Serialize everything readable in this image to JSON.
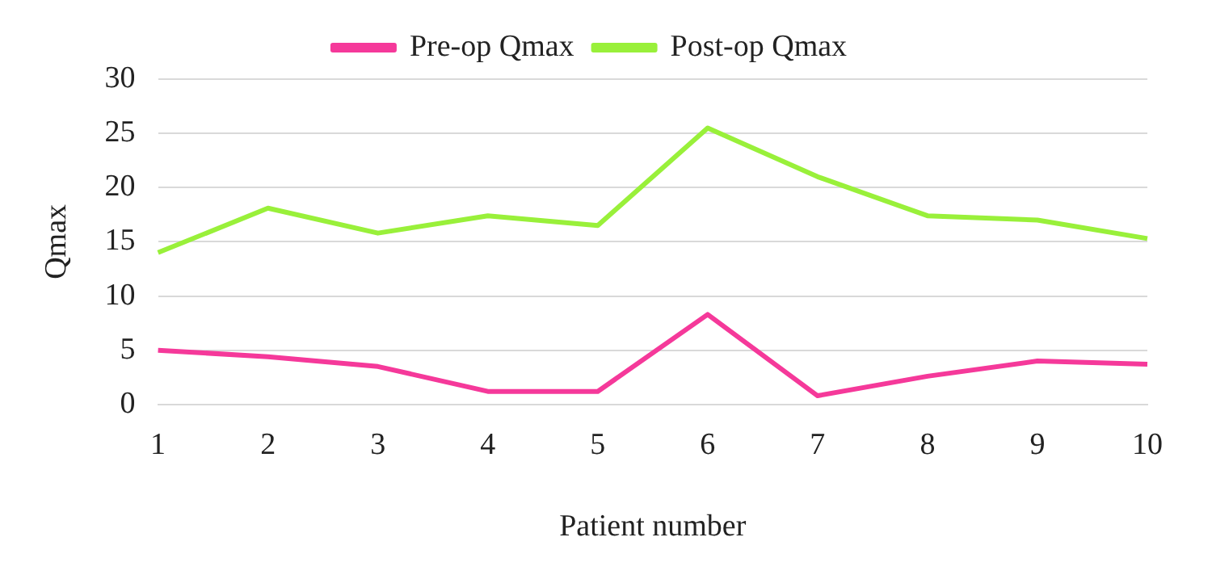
{
  "chart_data": {
    "type": "line",
    "xlabel": "Patient number",
    "ylabel": "Qmax",
    "categories": [
      "1",
      "2",
      "3",
      "4",
      "5",
      "6",
      "7",
      "8",
      "9",
      "10"
    ],
    "series": [
      {
        "name": "Pre-op Qmax",
        "color": "#f5399a",
        "values": [
          5,
          4.4,
          3.5,
          1.2,
          1.2,
          8.3,
          0.8,
          2.6,
          4,
          3.7
        ]
      },
      {
        "name": "Post-op Qmax",
        "color": "#99f03a",
        "values": [
          14,
          18.1,
          15.8,
          17.4,
          16.5,
          25.5,
          21,
          17.4,
          17,
          15.3
        ]
      }
    ],
    "ylim": [
      0,
      30
    ],
    "yticks": [
      0,
      5,
      10,
      15,
      20,
      25,
      30
    ],
    "grid": "y",
    "legend": "top",
    "marker": "none",
    "line_style": "solid"
  }
}
